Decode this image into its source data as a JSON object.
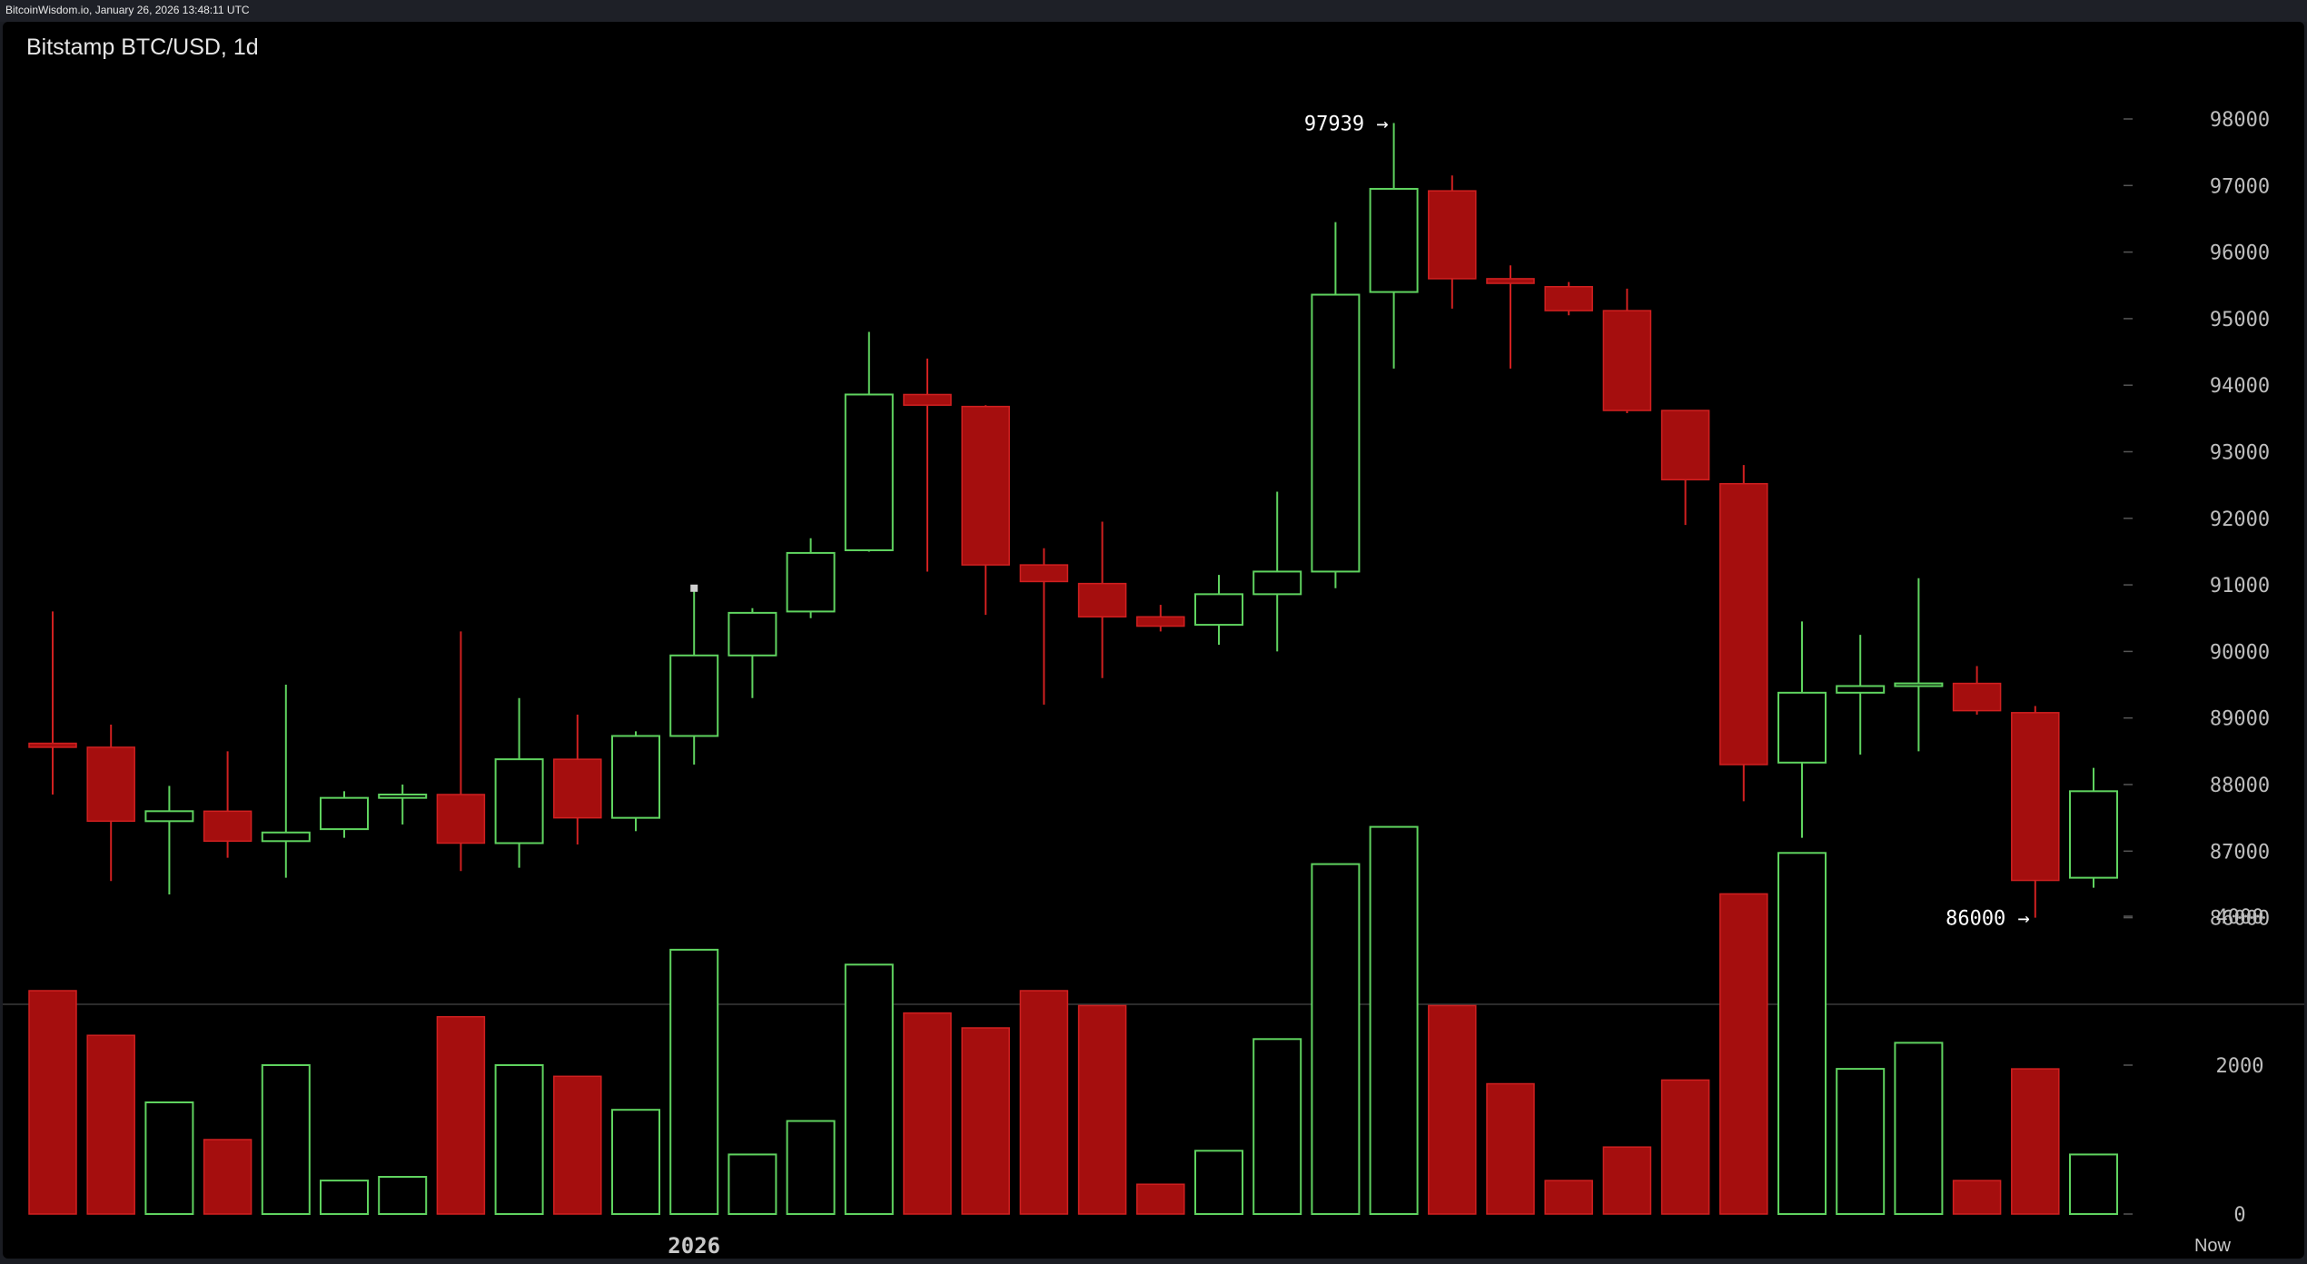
{
  "source_line": "BitcoinWisdom.io, January 26, 2026 13:48:11 UTC",
  "chart_data": {
    "type": "candlestick",
    "title": "Bitstamp BTC/USD, 1d",
    "ylim": [
      85500,
      98500
    ],
    "yticks": [
      86000,
      87000,
      88000,
      89000,
      90000,
      91000,
      92000,
      93000,
      94000,
      95000,
      96000,
      97000,
      98000
    ],
    "volume_ylim": [
      0,
      5500
    ],
    "volume_ticks": [
      0,
      2000,
      4000
    ],
    "x_labels": [
      "2026",
      "Now"
    ],
    "x_label_index": 11,
    "annotations": [
      {
        "text": "97939 →",
        "index": 23,
        "value": 97939,
        "type": "high"
      },
      {
        "text": "86000 →",
        "index": 34,
        "value": 86000,
        "type": "low"
      }
    ],
    "colors": {
      "up": "#5fd35f",
      "down": "#a50e0e",
      "down_border": "#d02020",
      "background": "#000000",
      "axis": "#bdbdbd"
    },
    "candles": [
      {
        "open": 88620,
        "high": 90600,
        "low": 87850,
        "close": 88560,
        "volume": 3000
      },
      {
        "open": 88560,
        "high": 88900,
        "low": 86550,
        "close": 87450,
        "volume": 2400
      },
      {
        "open": 87450,
        "high": 87980,
        "low": 86350,
        "close": 87600,
        "volume": 1500
      },
      {
        "open": 87600,
        "high": 88500,
        "low": 86900,
        "close": 87150,
        "volume": 1000
      },
      {
        "open": 87150,
        "high": 89500,
        "low": 86600,
        "close": 87280,
        "volume": 2000
      },
      {
        "open": 87330,
        "high": 87900,
        "low": 87200,
        "close": 87800,
        "volume": 450
      },
      {
        "open": 87800,
        "high": 88000,
        "low": 87400,
        "close": 87850,
        "volume": 500
      },
      {
        "open": 87850,
        "high": 90300,
        "low": 86700,
        "close": 87120,
        "volume": 2650
      },
      {
        "open": 87120,
        "high": 89300,
        "low": 86750,
        "close": 88380,
        "volume": 2000
      },
      {
        "open": 88380,
        "high": 89050,
        "low": 87100,
        "close": 87500,
        "volume": 1850
      },
      {
        "open": 87500,
        "high": 88800,
        "low": 87300,
        "close": 88730,
        "volume": 1400
      },
      {
        "open": 88730,
        "high": 90950,
        "low": 88300,
        "close": 89940,
        "volume": 3550
      },
      {
        "open": 89940,
        "high": 90650,
        "low": 89300,
        "close": 90580,
        "volume": 800
      },
      {
        "open": 90600,
        "high": 91700,
        "low": 90500,
        "close": 91480,
        "volume": 1250
      },
      {
        "open": 91520,
        "high": 94800,
        "low": 91500,
        "close": 93860,
        "volume": 3350
      },
      {
        "open": 93860,
        "high": 94400,
        "low": 91200,
        "close": 93700,
        "volume": 2700
      },
      {
        "open": 93680,
        "high": 93700,
        "low": 90550,
        "close": 91300,
        "volume": 2500
      },
      {
        "open": 91300,
        "high": 91550,
        "low": 89200,
        "close": 91050,
        "volume": 3000
      },
      {
        "open": 91020,
        "high": 91950,
        "low": 89600,
        "close": 90520,
        "volume": 2800
      },
      {
        "open": 90520,
        "high": 90700,
        "low": 90300,
        "close": 90380,
        "volume": 400
      },
      {
        "open": 90400,
        "high": 91150,
        "low": 90100,
        "close": 90860,
        "volume": 850
      },
      {
        "open": 90860,
        "high": 92400,
        "low": 90000,
        "close": 91200,
        "volume": 2350
      },
      {
        "open": 91200,
        "high": 96450,
        "low": 90950,
        "close": 95360,
        "volume": 4700
      },
      {
        "open": 95400,
        "high": 97939,
        "low": 94250,
        "close": 96950,
        "volume": 5200
      },
      {
        "open": 96920,
        "high": 97150,
        "low": 95150,
        "close": 95600,
        "volume": 2800
      },
      {
        "open": 95600,
        "high": 95800,
        "low": 94250,
        "close": 95530,
        "volume": 1750
      },
      {
        "open": 95480,
        "high": 95550,
        "low": 95050,
        "close": 95120,
        "volume": 450
      },
      {
        "open": 95120,
        "high": 95450,
        "low": 93580,
        "close": 93620,
        "volume": 900
      },
      {
        "open": 93620,
        "high": 93620,
        "low": 91900,
        "close": 92580,
        "volume": 1800
      },
      {
        "open": 92520,
        "high": 92800,
        "low": 87750,
        "close": 88300,
        "volume": 4300
      },
      {
        "open": 88330,
        "high": 90450,
        "low": 87200,
        "close": 89380,
        "volume": 4850
      },
      {
        "open": 89380,
        "high": 90250,
        "low": 88450,
        "close": 89480,
        "volume": 1950
      },
      {
        "open": 89480,
        "high": 91100,
        "low": 88500,
        "close": 89520,
        "volume": 2300
      },
      {
        "open": 89520,
        "high": 89780,
        "low": 89050,
        "close": 89110,
        "volume": 450
      },
      {
        "open": 89080,
        "high": 89180,
        "low": 86000,
        "close": 86560,
        "volume": 1950
      },
      {
        "open": 86600,
        "high": 88250,
        "low": 86450,
        "close": 87900,
        "volume": 800
      }
    ]
  }
}
